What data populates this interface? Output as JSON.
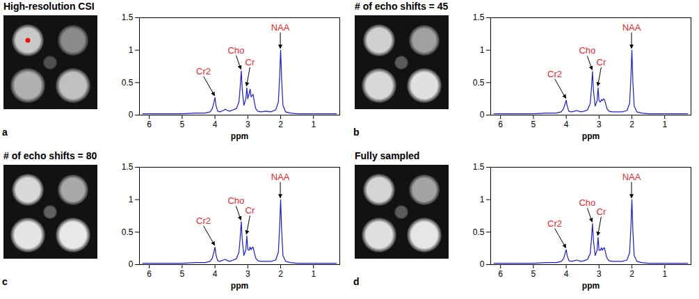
{
  "chart_data": [
    {
      "type": "line",
      "title": "High-resolution CSI",
      "panel": "a",
      "xlabel": "ppm",
      "color": "#1a1ad6",
      "xlim": [
        6.3,
        0.2
      ],
      "xticks": [
        6,
        5,
        4,
        3,
        2,
        1
      ],
      "ylim": [
        0,
        1.5
      ],
      "yticks": [
        0,
        0.5,
        1,
        1.5
      ],
      "grid": false,
      "x": [
        6.2,
        5.8,
        5.4,
        5.0,
        4.6,
        4.3,
        4.15,
        4.08,
        4.03,
        4.0,
        3.97,
        3.92,
        3.85,
        3.75,
        3.68,
        3.62,
        3.55,
        3.45,
        3.35,
        3.27,
        3.23,
        3.2,
        3.17,
        3.12,
        3.06,
        3.03,
        3.0,
        2.96,
        2.93,
        2.9,
        2.87,
        2.84,
        2.8,
        2.76,
        2.7,
        2.6,
        2.45,
        2.3,
        2.15,
        2.07,
        2.03,
        2.0,
        1.97,
        1.93,
        1.85,
        1.7,
        1.5,
        1.2,
        0.9,
        0.6,
        0.3
      ],
      "values": [
        0.02,
        0.02,
        0.02,
        0.02,
        0.03,
        0.03,
        0.05,
        0.1,
        0.2,
        0.27,
        0.15,
        0.06,
        0.05,
        0.07,
        0.09,
        0.07,
        0.06,
        0.08,
        0.1,
        0.2,
        0.45,
        0.68,
        0.4,
        0.15,
        0.25,
        0.42,
        0.25,
        0.33,
        0.4,
        0.28,
        0.3,
        0.32,
        0.2,
        0.1,
        0.06,
        0.05,
        0.06,
        0.05,
        0.08,
        0.2,
        0.6,
        1.0,
        0.55,
        0.15,
        0.05,
        0.03,
        0.02,
        0.02,
        0.02,
        0.02,
        0.02
      ],
      "annotations": [
        {
          "text": "Cr2",
          "x": 4.0,
          "y": 0.27,
          "color": "#e3262b"
        },
        {
          "text": "Cho",
          "x": 3.2,
          "y": 0.68,
          "color": "#e3262b"
        },
        {
          "text": "Cr",
          "x": 3.03,
          "y": 0.42,
          "color": "#e3262b"
        },
        {
          "text": "NAA",
          "x": 2.0,
          "y": 1.0,
          "color": "#e3262b"
        }
      ]
    },
    {
      "type": "line",
      "title": "# of echo shifts = 45",
      "panel": "b",
      "xlabel": "ppm",
      "color": "#1a1ad6",
      "xlim": [
        6.3,
        0.2
      ],
      "xticks": [
        6,
        5,
        4,
        3,
        2,
        1
      ],
      "ylim": [
        0,
        1.5
      ],
      "yticks": [
        0,
        0.5,
        1,
        1.5
      ],
      "grid": false,
      "x": [
        6.2,
        5.8,
        5.4,
        5.0,
        4.6,
        4.3,
        4.15,
        4.08,
        4.03,
        4.0,
        3.97,
        3.92,
        3.85,
        3.75,
        3.68,
        3.62,
        3.55,
        3.45,
        3.35,
        3.27,
        3.23,
        3.2,
        3.17,
        3.12,
        3.06,
        3.03,
        3.0,
        2.96,
        2.93,
        2.9,
        2.87,
        2.84,
        2.8,
        2.76,
        2.7,
        2.6,
        2.45,
        2.3,
        2.15,
        2.07,
        2.03,
        2.0,
        1.97,
        1.93,
        1.85,
        1.7,
        1.5,
        1.2,
        0.9,
        0.6,
        0.3
      ],
      "values": [
        0.02,
        0.02,
        0.02,
        0.02,
        0.03,
        0.03,
        0.05,
        0.1,
        0.18,
        0.23,
        0.14,
        0.06,
        0.05,
        0.06,
        0.07,
        0.06,
        0.05,
        0.06,
        0.08,
        0.18,
        0.42,
        0.67,
        0.38,
        0.14,
        0.22,
        0.42,
        0.22,
        0.2,
        0.24,
        0.22,
        0.25,
        0.24,
        0.18,
        0.1,
        0.06,
        0.05,
        0.05,
        0.05,
        0.07,
        0.18,
        0.58,
        1.0,
        0.52,
        0.14,
        0.05,
        0.03,
        0.02,
        0.02,
        0.02,
        0.02,
        0.02
      ],
      "annotations": [
        {
          "text": "Cr2",
          "x": 4.0,
          "y": 0.23,
          "color": "#e3262b"
        },
        {
          "text": "Cho",
          "x": 3.2,
          "y": 0.67,
          "color": "#e3262b"
        },
        {
          "text": "Cr",
          "x": 3.03,
          "y": 0.42,
          "color": "#e3262b"
        },
        {
          "text": "NAA",
          "x": 2.0,
          "y": 1.0,
          "color": "#e3262b"
        }
      ]
    },
    {
      "type": "line",
      "title": "# of echo shifts = 80",
      "panel": "c",
      "xlabel": "ppm",
      "color": "#1a1ad6",
      "xlim": [
        6.3,
        0.2
      ],
      "xticks": [
        6,
        5,
        4,
        3,
        2,
        1
      ],
      "ylim": [
        0,
        1.5
      ],
      "yticks": [
        0,
        0.5,
        1,
        1.5
      ],
      "grid": false,
      "x": [
        6.2,
        5.8,
        5.4,
        5.0,
        4.6,
        4.3,
        4.15,
        4.08,
        4.03,
        4.0,
        3.97,
        3.92,
        3.85,
        3.75,
        3.68,
        3.62,
        3.55,
        3.45,
        3.35,
        3.27,
        3.23,
        3.2,
        3.17,
        3.12,
        3.06,
        3.03,
        3.0,
        2.96,
        2.93,
        2.9,
        2.87,
        2.84,
        2.8,
        2.76,
        2.7,
        2.6,
        2.45,
        2.3,
        2.15,
        2.07,
        2.03,
        2.0,
        1.97,
        1.93,
        1.85,
        1.7,
        1.5,
        1.2,
        0.9,
        0.6,
        0.3
      ],
      "values": [
        0.02,
        0.02,
        0.02,
        0.02,
        0.03,
        0.03,
        0.05,
        0.1,
        0.2,
        0.27,
        0.15,
        0.06,
        0.05,
        0.07,
        0.08,
        0.06,
        0.05,
        0.07,
        0.09,
        0.19,
        0.43,
        0.66,
        0.39,
        0.14,
        0.23,
        0.44,
        0.23,
        0.22,
        0.27,
        0.23,
        0.26,
        0.27,
        0.18,
        0.1,
        0.06,
        0.05,
        0.05,
        0.05,
        0.07,
        0.19,
        0.59,
        1.0,
        0.53,
        0.14,
        0.05,
        0.03,
        0.02,
        0.02,
        0.02,
        0.02,
        0.02
      ],
      "annotations": [
        {
          "text": "Cr2",
          "x": 4.0,
          "y": 0.27,
          "color": "#e3262b"
        },
        {
          "text": "Cho",
          "x": 3.2,
          "y": 0.66,
          "color": "#e3262b"
        },
        {
          "text": "Cr",
          "x": 3.03,
          "y": 0.44,
          "color": "#e3262b"
        },
        {
          "text": "NAA",
          "x": 2.0,
          "y": 1.0,
          "color": "#e3262b"
        }
      ]
    },
    {
      "type": "line",
      "title": "Fully sampled",
      "panel": "d",
      "xlabel": "ppm",
      "color": "#1a1ad6",
      "xlim": [
        6.3,
        0.2
      ],
      "xticks": [
        6,
        5,
        4,
        3,
        2,
        1
      ],
      "ylim": [
        0,
        1.5
      ],
      "yticks": [
        0,
        0.5,
        1,
        1.5
      ],
      "grid": false,
      "x": [
        6.2,
        5.8,
        5.4,
        5.0,
        4.6,
        4.3,
        4.15,
        4.08,
        4.03,
        4.0,
        3.97,
        3.92,
        3.85,
        3.75,
        3.68,
        3.62,
        3.55,
        3.45,
        3.35,
        3.27,
        3.23,
        3.2,
        3.17,
        3.12,
        3.06,
        3.03,
        3.0,
        2.96,
        2.93,
        2.9,
        2.87,
        2.84,
        2.8,
        2.76,
        2.7,
        2.6,
        2.45,
        2.3,
        2.15,
        2.07,
        2.03,
        2.0,
        1.97,
        1.93,
        1.85,
        1.7,
        1.5,
        1.2,
        0.9,
        0.6,
        0.3
      ],
      "values": [
        0.02,
        0.02,
        0.02,
        0.02,
        0.03,
        0.03,
        0.05,
        0.09,
        0.18,
        0.23,
        0.14,
        0.06,
        0.05,
        0.06,
        0.07,
        0.06,
        0.05,
        0.06,
        0.08,
        0.17,
        0.4,
        0.63,
        0.37,
        0.14,
        0.22,
        0.42,
        0.22,
        0.22,
        0.26,
        0.22,
        0.25,
        0.26,
        0.18,
        0.1,
        0.06,
        0.05,
        0.05,
        0.05,
        0.07,
        0.18,
        0.58,
        1.0,
        0.52,
        0.14,
        0.05,
        0.03,
        0.02,
        0.02,
        0.02,
        0.02,
        0.02
      ],
      "annotations": [
        {
          "text": "Cr2",
          "x": 4.0,
          "y": 0.23,
          "color": "#e3262b"
        },
        {
          "text": "Cho",
          "x": 3.2,
          "y": 0.63,
          "color": "#e3262b"
        },
        {
          "text": "Cr",
          "x": 3.03,
          "y": 0.42,
          "color": "#e3262b"
        },
        {
          "text": "NAA",
          "x": 2.0,
          "y": 1.0,
          "color": "#e3262b"
        }
      ]
    }
  ]
}
